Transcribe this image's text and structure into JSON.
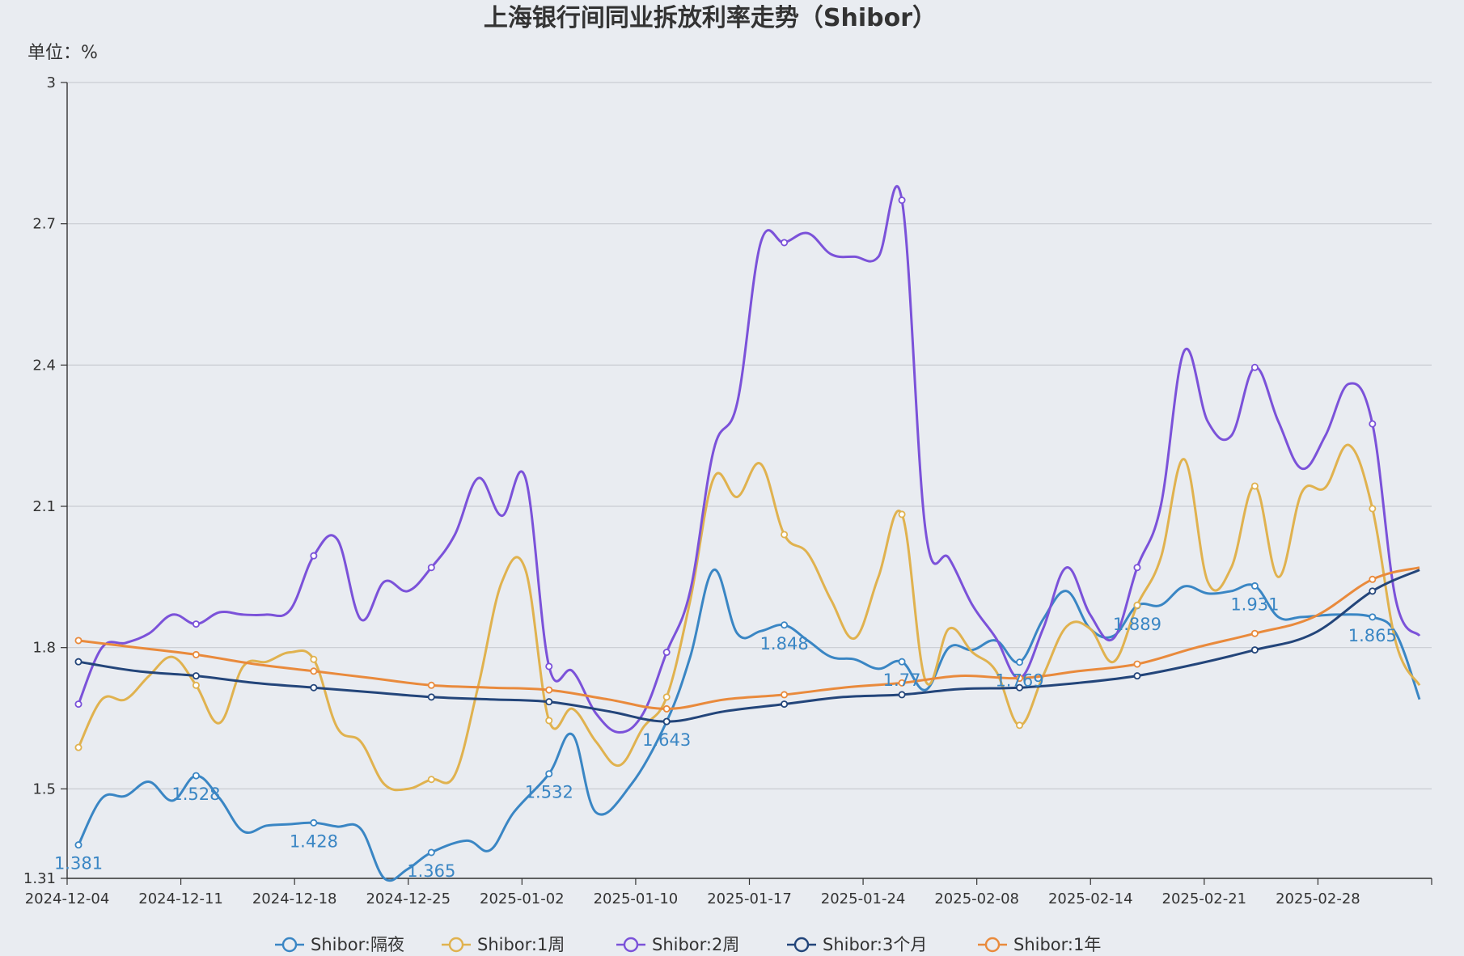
{
  "chart_data": {
    "type": "line",
    "title": "上海银行间同业拆放利率走势（Shibor）",
    "unit_label": "单位：%",
    "ylim": [
      1.31,
      3
    ],
    "y_ticks": [
      "1.31",
      "1.5",
      "1.8",
      "2.1",
      "2.4",
      "2.7",
      "3"
    ],
    "x_ticks": [
      "2024-12-04",
      "2024-12-11",
      "2024-12-18",
      "2024-12-25",
      "2025-01-02",
      "2025-01-10",
      "2025-01-17",
      "2025-01-24",
      "2025-02-08",
      "2025-02-14",
      "2025-02-21",
      "2025-02-28"
    ],
    "grid": true,
    "legend_position": "bottom",
    "x_count": 58,
    "series": [
      {
        "name": "Shibor:隔夜",
        "color": "#3a86c4",
        "points": [
          [
            0,
            1.381
          ],
          [
            2,
            1.48
          ],
          [
            4,
            1.485
          ],
          [
            6,
            1.515
          ],
          [
            8,
            1.475
          ],
          [
            10,
            1.528
          ],
          [
            12,
            1.48
          ],
          [
            14,
            1.41
          ],
          [
            16,
            1.422
          ],
          [
            18,
            1.425
          ],
          [
            20,
            1.428
          ],
          [
            22,
            1.42
          ],
          [
            24,
            1.415
          ],
          [
            26,
            1.31
          ],
          [
            28,
            1.33
          ],
          [
            30,
            1.365
          ],
          [
            33,
            1.39
          ],
          [
            35,
            1.37
          ],
          [
            37,
            1.45
          ],
          [
            40,
            1.532
          ],
          [
            42,
            1.615
          ],
          [
            44,
            1.45
          ],
          [
            47,
            1.51
          ],
          [
            50,
            1.643
          ],
          [
            52,
            1.78
          ],
          [
            54,
            1.965
          ],
          [
            56,
            1.83
          ],
          [
            58,
            1.835
          ],
          [
            60,
            1.848
          ],
          [
            62,
            1.815
          ],
          [
            64,
            1.78
          ],
          [
            66,
            1.775
          ],
          [
            68,
            1.755
          ],
          [
            70,
            1.77
          ],
          [
            72,
            1.71
          ],
          [
            74,
            1.8
          ],
          [
            76,
            1.795
          ],
          [
            78,
            1.815
          ],
          [
            80,
            1.769
          ],
          [
            82,
            1.86
          ],
          [
            84,
            1.92
          ],
          [
            86,
            1.84
          ],
          [
            88,
            1.825
          ],
          [
            90,
            1.889
          ],
          [
            92,
            1.89
          ],
          [
            94,
            1.93
          ],
          [
            96,
            1.915
          ],
          [
            98,
            1.92
          ],
          [
            100,
            1.931
          ],
          [
            102,
            1.865
          ],
          [
            104,
            1.865
          ],
          [
            107,
            1.87
          ],
          [
            110,
            1.865
          ],
          [
            112,
            1.83
          ],
          [
            114,
            1.69
          ]
        ],
        "labels": [
          [
            0,
            1.381,
            "1.381"
          ],
          [
            10,
            1.528,
            "1.528"
          ],
          [
            20,
            1.428,
            "1.428"
          ],
          [
            30,
            1.365,
            "1.365"
          ],
          [
            40,
            1.532,
            "1.532"
          ],
          [
            50,
            1.643,
            "1.643"
          ],
          [
            60,
            1.848,
            "1.848"
          ],
          [
            70,
            1.77,
            "1.77"
          ],
          [
            80,
            1.769,
            "1.769"
          ],
          [
            90,
            1.889,
            "1.889"
          ],
          [
            100,
            1.931,
            "1.931"
          ],
          [
            110,
            1.865,
            "1.865"
          ]
        ]
      },
      {
        "name": "Shibor:1周",
        "color": "#e0b24f",
        "points": [
          [
            0,
            1.588
          ],
          [
            2,
            1.69
          ],
          [
            4,
            1.69
          ],
          [
            6,
            1.74
          ],
          [
            8,
            1.78
          ],
          [
            10,
            1.72
          ],
          [
            12,
            1.64
          ],
          [
            14,
            1.76
          ],
          [
            16,
            1.77
          ],
          [
            18,
            1.79
          ],
          [
            20,
            1.775
          ],
          [
            22,
            1.63
          ],
          [
            24,
            1.6
          ],
          [
            26,
            1.51
          ],
          [
            28,
            1.5
          ],
          [
            30,
            1.52
          ],
          [
            32,
            1.53
          ],
          [
            34,
            1.72
          ],
          [
            36,
            1.94
          ],
          [
            38,
            1.965
          ],
          [
            40,
            1.645
          ],
          [
            42,
            1.67
          ],
          [
            44,
            1.6
          ],
          [
            46,
            1.55
          ],
          [
            48,
            1.63
          ],
          [
            50,
            1.695
          ],
          [
            52,
            1.9
          ],
          [
            54,
            2.16
          ],
          [
            56,
            2.12
          ],
          [
            58,
            2.19
          ],
          [
            60,
            2.04
          ],
          [
            62,
            2.0
          ],
          [
            64,
            1.9
          ],
          [
            66,
            1.82
          ],
          [
            68,
            1.95
          ],
          [
            70,
            2.083
          ],
          [
            72,
            1.73
          ],
          [
            74,
            1.84
          ],
          [
            76,
            1.79
          ],
          [
            78,
            1.75
          ],
          [
            80,
            1.635
          ],
          [
            82,
            1.74
          ],
          [
            84,
            1.845
          ],
          [
            86,
            1.84
          ],
          [
            88,
            1.77
          ],
          [
            90,
            1.89
          ],
          [
            92,
            1.99
          ],
          [
            94,
            2.2
          ],
          [
            96,
            1.94
          ],
          [
            98,
            1.97
          ],
          [
            100,
            2.143
          ],
          [
            102,
            1.95
          ],
          [
            104,
            2.13
          ],
          [
            106,
            2.14
          ],
          [
            108,
            2.23
          ],
          [
            110,
            2.095
          ],
          [
            112,
            1.81
          ],
          [
            114,
            1.72
          ]
        ]
      },
      {
        "name": "Shibor:2周",
        "color": "#7b52d9",
        "points": [
          [
            0,
            1.68
          ],
          [
            2,
            1.8
          ],
          [
            4,
            1.81
          ],
          [
            6,
            1.83
          ],
          [
            8,
            1.87
          ],
          [
            10,
            1.85
          ],
          [
            12,
            1.875
          ],
          [
            14,
            1.87
          ],
          [
            16,
            1.87
          ],
          [
            18,
            1.88
          ],
          [
            20,
            1.995
          ],
          [
            22,
            2.03
          ],
          [
            24,
            1.86
          ],
          [
            26,
            1.94
          ],
          [
            28,
            1.92
          ],
          [
            30,
            1.97
          ],
          [
            32,
            2.04
          ],
          [
            34,
            2.16
          ],
          [
            36,
            2.08
          ],
          [
            38,
            2.16
          ],
          [
            40,
            1.76
          ],
          [
            42,
            1.75
          ],
          [
            44,
            1.66
          ],
          [
            46,
            1.62
          ],
          [
            48,
            1.66
          ],
          [
            50,
            1.79
          ],
          [
            52,
            1.92
          ],
          [
            54,
            2.22
          ],
          [
            56,
            2.32
          ],
          [
            58,
            2.66
          ],
          [
            60,
            2.66
          ],
          [
            62,
            2.68
          ],
          [
            64,
            2.635
          ],
          [
            66,
            2.63
          ],
          [
            68,
            2.63
          ],
          [
            70,
            2.75
          ],
          [
            72,
            2.05
          ],
          [
            74,
            1.99
          ],
          [
            76,
            1.89
          ],
          [
            78,
            1.82
          ],
          [
            80,
            1.735
          ],
          [
            82,
            1.84
          ],
          [
            84,
            1.97
          ],
          [
            86,
            1.87
          ],
          [
            88,
            1.82
          ],
          [
            90,
            1.97
          ],
          [
            92,
            2.1
          ],
          [
            94,
            2.43
          ],
          [
            96,
            2.28
          ],
          [
            98,
            2.25
          ],
          [
            100,
            2.395
          ],
          [
            102,
            2.28
          ],
          [
            104,
            2.18
          ],
          [
            106,
            2.25
          ],
          [
            108,
            2.36
          ],
          [
            110,
            2.275
          ],
          [
            112,
            1.9
          ],
          [
            114,
            1.825
          ]
        ]
      },
      {
        "name": "Shibor:3个月",
        "color": "#23457a",
        "points": [
          [
            0,
            1.77
          ],
          [
            5,
            1.75
          ],
          [
            10,
            1.74
          ],
          [
            15,
            1.725
          ],
          [
            20,
            1.715
          ],
          [
            25,
            1.705
          ],
          [
            30,
            1.695
          ],
          [
            35,
            1.69
          ],
          [
            40,
            1.685
          ],
          [
            45,
            1.665
          ],
          [
            50,
            1.643
          ],
          [
            55,
            1.665
          ],
          [
            60,
            1.68
          ],
          [
            65,
            1.695
          ],
          [
            70,
            1.7
          ],
          [
            75,
            1.712
          ],
          [
            80,
            1.715
          ],
          [
            85,
            1.725
          ],
          [
            90,
            1.74
          ],
          [
            95,
            1.765
          ],
          [
            100,
            1.795
          ],
          [
            105,
            1.83
          ],
          [
            110,
            1.92
          ],
          [
            114,
            1.965
          ]
        ]
      },
      {
        "name": "Shibor:1年",
        "color": "#e98a3c",
        "points": [
          [
            0,
            1.815
          ],
          [
            5,
            1.8
          ],
          [
            10,
            1.785
          ],
          [
            15,
            1.765
          ],
          [
            20,
            1.75
          ],
          [
            25,
            1.735
          ],
          [
            30,
            1.72
          ],
          [
            35,
            1.715
          ],
          [
            40,
            1.71
          ],
          [
            45,
            1.69
          ],
          [
            50,
            1.67
          ],
          [
            55,
            1.69
          ],
          [
            60,
            1.7
          ],
          [
            65,
            1.715
          ],
          [
            70,
            1.725
          ],
          [
            75,
            1.74
          ],
          [
            80,
            1.735
          ],
          [
            85,
            1.75
          ],
          [
            90,
            1.765
          ],
          [
            95,
            1.8
          ],
          [
            100,
            1.83
          ],
          [
            105,
            1.865
          ],
          [
            110,
            1.945
          ],
          [
            114,
            1.97
          ]
        ]
      }
    ]
  }
}
